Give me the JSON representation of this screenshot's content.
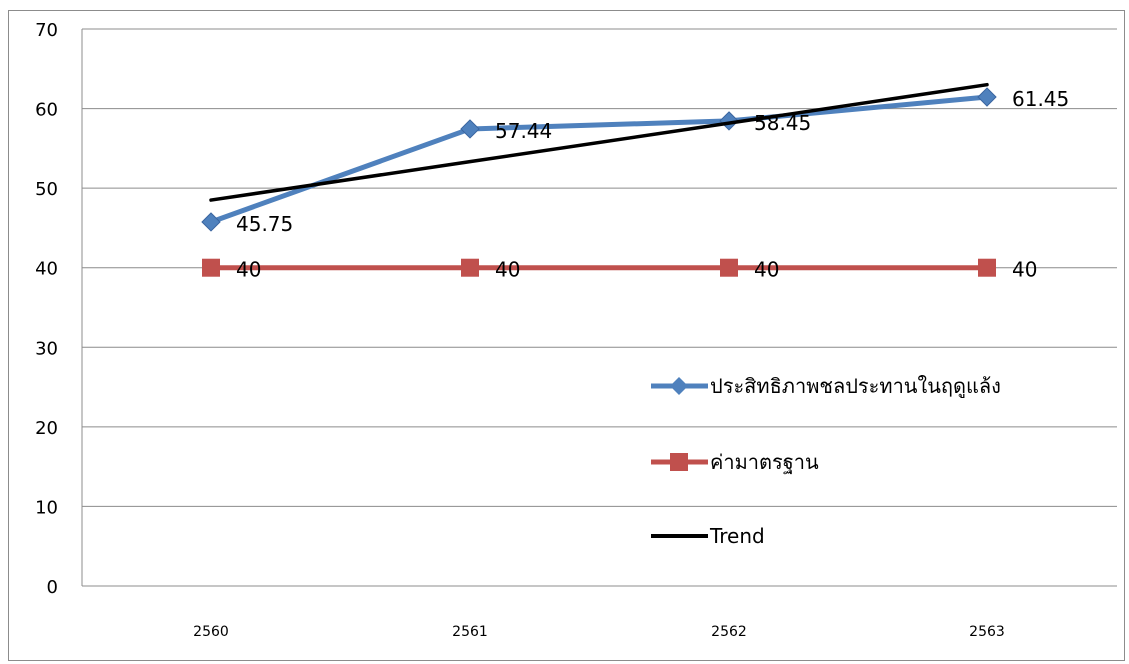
{
  "chart_data": {
    "type": "line",
    "categories": [
      "2560",
      "2561",
      "2562",
      "2563"
    ],
    "ylim": [
      0,
      70
    ],
    "yticks": [
      0,
      10,
      20,
      30,
      40,
      50,
      60,
      70
    ],
    "grid": true,
    "legend_position": "right",
    "series": [
      {
        "name": "ประสิทธิภาพชลประทานในฤดูแล้ง",
        "values": [
          45.75,
          57.44,
          58.45,
          61.45
        ],
        "labels": [
          "45.75",
          "57.44",
          "58.45",
          "61.45"
        ],
        "color": "#4f81bd",
        "marker": "diamond"
      },
      {
        "name": "ค่ามาตรฐาน",
        "values": [
          40,
          40,
          40,
          40
        ],
        "labels": [
          "40",
          "40",
          "40",
          "40"
        ],
        "color": "#c0504d",
        "marker": "square"
      },
      {
        "name": "Trend",
        "values": [
          48.5,
          53.33,
          58.17,
          63.0
        ],
        "color": "#000000",
        "marker": "none"
      }
    ]
  }
}
